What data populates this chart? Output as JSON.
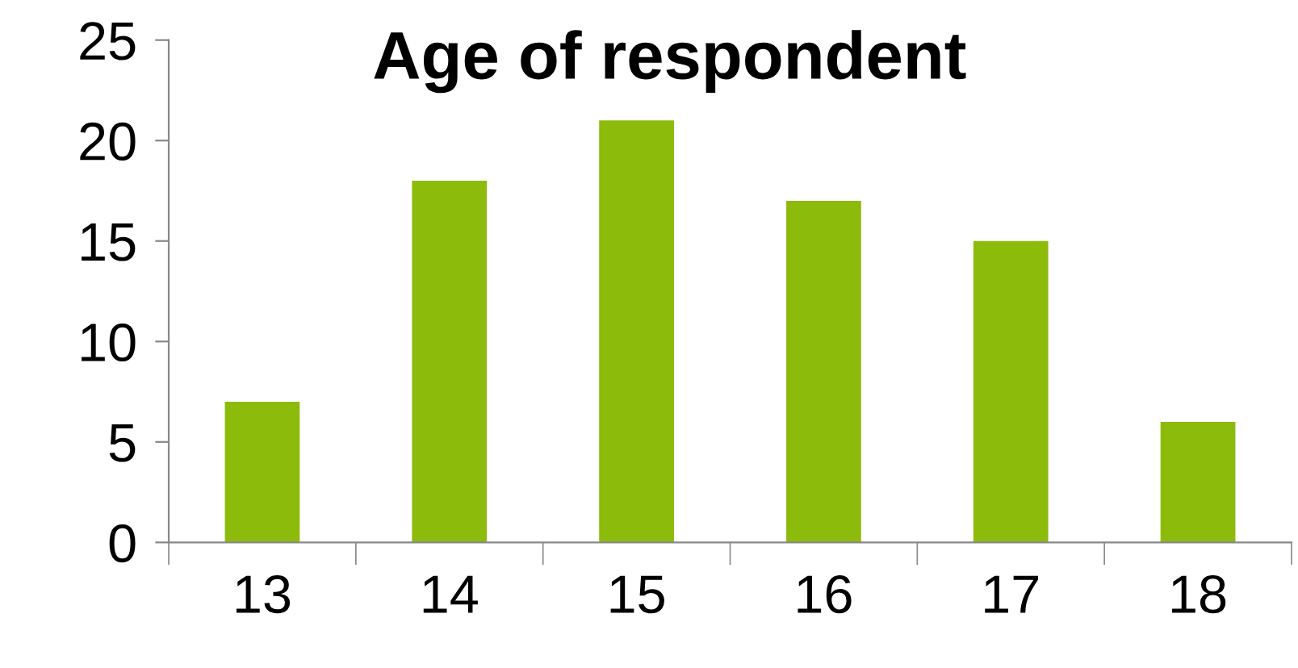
{
  "chart_data": {
    "type": "bar",
    "title": "Age of respondent",
    "categories": [
      "13",
      "14",
      "15",
      "16",
      "17",
      "18"
    ],
    "values": [
      7,
      18,
      21,
      17,
      15,
      6
    ],
    "color": "#8cbb0b",
    "ylim": [
      0,
      25
    ],
    "yticks": [
      0,
      5,
      10,
      15,
      20,
      25
    ],
    "grid": false,
    "legend": false
  }
}
